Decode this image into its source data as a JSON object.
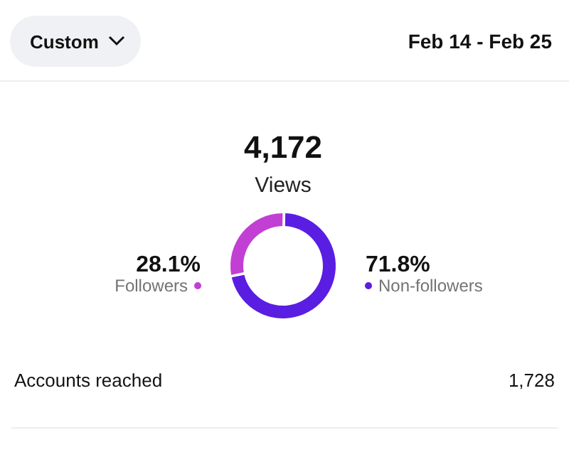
{
  "chart_data": {
    "type": "donut",
    "title": "4,172",
    "subtitle": "Views",
    "categories": [
      "Followers",
      "Non-followers"
    ],
    "values": [
      28.1,
      71.8
    ],
    "colors": [
      "#c23fd4",
      "#5a1de2"
    ],
    "value_labels": [
      "28.1%",
      "71.8%"
    ],
    "annotations": [
      "Custom",
      "Feb 14 - Feb 25",
      "Accounts reached",
      "1,728"
    ]
  }
}
